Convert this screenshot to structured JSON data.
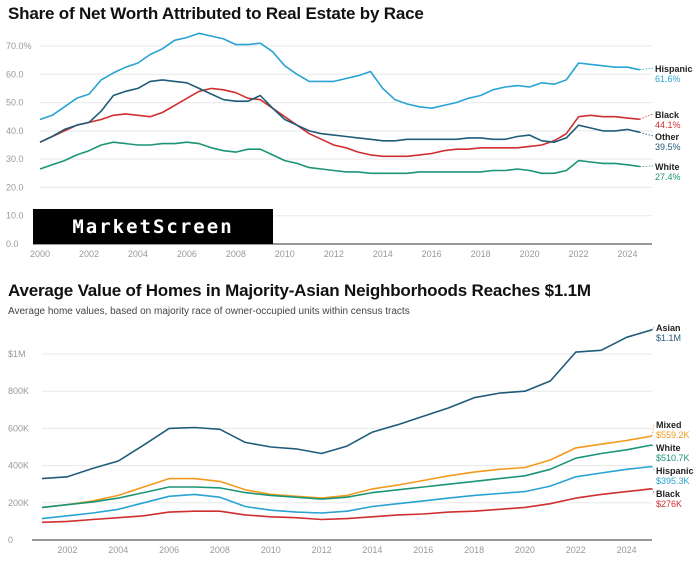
{
  "chart_data": [
    {
      "type": "line",
      "title": "Share of Net Worth Attributed to Real Estate by Race",
      "xlabel": "",
      "ylabel": "",
      "ylim": [
        0,
        70
      ],
      "xlim": [
        2000,
        2025
      ],
      "y_ticks": [
        "0.0",
        "10.0",
        "20.0",
        "30.0",
        "40.0",
        "50.0",
        "60.0",
        "70.0%"
      ],
      "y_tick_values": [
        0,
        10,
        20,
        30,
        40,
        50,
        60,
        70
      ],
      "x_ticks": [
        "2000",
        "2002",
        "2004",
        "2006",
        "2008",
        "2010",
        "2012",
        "2014",
        "2016",
        "2018",
        "2020",
        "2022",
        "2024"
      ],
      "grid": true,
      "legend": "end-of-line labels, right",
      "x": [
        2000,
        2000.5,
        2001,
        2001.5,
        2002,
        2002.5,
        2003,
        2003.5,
        2004,
        2004.5,
        2005,
        2005.5,
        2006,
        2006.5,
        2007,
        2007.5,
        2008,
        2008.5,
        2009,
        2009.5,
        2010,
        2010.5,
        2011,
        2011.5,
        2012,
        2012.5,
        2013,
        2013.5,
        2014,
        2014.5,
        2015,
        2015.5,
        2016,
        2016.5,
        2017,
        2017.5,
        2018,
        2018.5,
        2019,
        2019.5,
        2020,
        2020.5,
        2021,
        2021.5,
        2022,
        2022.5,
        2023,
        2023.5,
        2024,
        2024.5
      ],
      "series": [
        {
          "name": "Hispanic",
          "end_label": "61.6%",
          "color": "#29a3d4",
          "values": [
            44,
            45.5,
            48.5,
            51.5,
            53,
            58,
            60.5,
            62.5,
            64,
            67,
            69,
            72,
            73,
            74.5,
            73.5,
            72.5,
            70.5,
            70.5,
            71,
            68,
            63,
            60,
            57.5,
            57.5,
            57.5,
            58.5,
            59.5,
            61,
            55,
            51,
            49.5,
            48.5,
            48,
            49,
            50,
            51.5,
            52.5,
            54.5,
            55.5,
            56,
            55.5,
            57,
            56.5,
            58,
            64,
            63.5,
            63,
            62.5,
            62.5,
            61.6
          ]
        },
        {
          "name": "Black",
          "end_label": "44.1%",
          "color": "#d02f2f",
          "values": [
            36,
            38,
            40,
            42,
            43,
            44,
            45.5,
            46,
            45.5,
            45,
            46.5,
            49,
            51.5,
            54,
            55,
            54.5,
            53.5,
            51.5,
            51,
            48,
            45,
            42,
            39,
            37,
            35,
            34,
            32.5,
            31.5,
            31,
            31,
            31,
            31.5,
            32,
            33,
            33.5,
            33.5,
            34,
            34,
            34,
            34,
            34.5,
            35,
            36.5,
            39,
            45,
            45.5,
            45,
            45,
            44.5,
            44.1
          ]
        },
        {
          "name": "Other",
          "end_label": "39.5%",
          "color": "#1f5c7a",
          "values": [
            36,
            38,
            40.5,
            42,
            43,
            47,
            52.5,
            54,
            55,
            57.5,
            58,
            57.5,
            57,
            55,
            53,
            51,
            50.5,
            50.5,
            52.5,
            48,
            44,
            42,
            40,
            39,
            38.5,
            38,
            37.5,
            37,
            36.5,
            36.5,
            37,
            37,
            37,
            37,
            37,
            37.5,
            37.5,
            37,
            37,
            38,
            38.5,
            36.5,
            36,
            37.5,
            42,
            41,
            40,
            40,
            40.5,
            39.5
          ]
        },
        {
          "name": "White",
          "end_label": "27.4%",
          "color": "#1b9477",
          "values": [
            26.5,
            28,
            29.5,
            31.5,
            33,
            35,
            36,
            35.5,
            35,
            35,
            35.5,
            35.5,
            36,
            35.5,
            34,
            33,
            32.5,
            33.5,
            33.5,
            31.5,
            29.5,
            28.5,
            27,
            26.5,
            26,
            25.5,
            25.5,
            25,
            25,
            25,
            25,
            25.5,
            25.5,
            25.5,
            25.5,
            25.5,
            25.5,
            26,
            26,
            26.5,
            26,
            25,
            25,
            26,
            29.5,
            29,
            28.5,
            28.5,
            28,
            27.4
          ]
        }
      ]
    },
    {
      "type": "line",
      "title": "Average Value of Homes in Majority-Asian Neighborhoods Reaches $1.1M",
      "subtitle": "Average home values, based on majority race of owner-occupied units within census tracts",
      "xlabel": "",
      "ylabel": "",
      "ylim": [
        0,
        1150000
      ],
      "xlim": [
        2001,
        2025
      ],
      "y_ticks": [
        "0",
        "200K",
        "400K",
        "600K",
        "800K",
        "$1M"
      ],
      "y_tick_values": [
        0,
        200000,
        400000,
        600000,
        800000,
        1000000
      ],
      "x_ticks": [
        "2002",
        "2004",
        "2006",
        "2008",
        "2010",
        "2012",
        "2014",
        "2016",
        "2018",
        "2020",
        "2022",
        "2024"
      ],
      "grid": true,
      "legend": "end-of-line labels, right",
      "x": [
        2001,
        2002,
        2003,
        2004,
        2005,
        2006,
        2007,
        2008,
        2009,
        2010,
        2011,
        2012,
        2013,
        2014,
        2015,
        2016,
        2017,
        2018,
        2019,
        2020,
        2021,
        2022,
        2023,
        2024,
        2025
      ],
      "series": [
        {
          "name": "Asian",
          "end_label": "$1.1M",
          "color": "#1f5c7a",
          "values": [
            330000,
            340000,
            385000,
            425000,
            510000,
            600000,
            605000,
            595000,
            525000,
            500000,
            490000,
            465000,
            505000,
            580000,
            620000,
            665000,
            710000,
            765000,
            790000,
            800000,
            855000,
            1010000,
            1020000,
            1090000,
            1130000
          ]
        },
        {
          "name": "Mixed",
          "end_label": "$559.2K",
          "color": "#f39a1e",
          "values": [
            175000,
            190000,
            210000,
            240000,
            285000,
            330000,
            330000,
            315000,
            270000,
            245000,
            235000,
            225000,
            240000,
            275000,
            295000,
            320000,
            345000,
            365000,
            380000,
            390000,
            430000,
            495000,
            515000,
            535000,
            559200
          ]
        },
        {
          "name": "White",
          "end_label": "$510.7K",
          "color": "#1b9477",
          "values": [
            175000,
            190000,
            205000,
            225000,
            255000,
            285000,
            285000,
            280000,
            255000,
            240000,
            230000,
            220000,
            230000,
            255000,
            270000,
            285000,
            300000,
            315000,
            330000,
            345000,
            380000,
            440000,
            465000,
            485000,
            510700
          ]
        },
        {
          "name": "Hispanic",
          "end_label": "$395.3K",
          "color": "#29a3d4",
          "values": [
            115000,
            130000,
            145000,
            165000,
            200000,
            235000,
            245000,
            230000,
            180000,
            160000,
            150000,
            145000,
            155000,
            180000,
            195000,
            210000,
            225000,
            240000,
            250000,
            260000,
            290000,
            340000,
            360000,
            380000,
            395300
          ]
        },
        {
          "name": "Black",
          "end_label": "$276K",
          "color": "#d02f2f",
          "values": [
            95000,
            100000,
            110000,
            120000,
            130000,
            150000,
            155000,
            155000,
            135000,
            125000,
            120000,
            110000,
            115000,
            125000,
            135000,
            140000,
            150000,
            155000,
            165000,
            175000,
            195000,
            225000,
            245000,
            260000,
            276000
          ]
        }
      ]
    }
  ],
  "watermark": "MarketScreen"
}
